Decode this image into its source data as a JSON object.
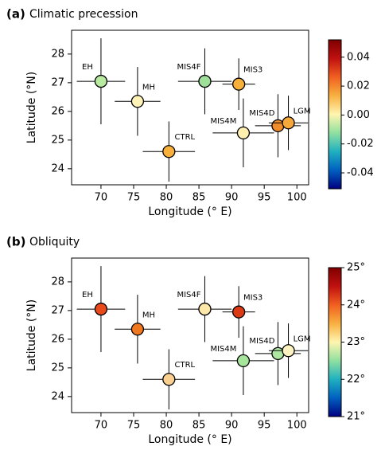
{
  "chart_data": [
    {
      "type": "scatter",
      "panel_label": "(a)",
      "title": "Climatic precession",
      "x_label": "Longitude (° E)",
      "y_label": "Latitude (°N)",
      "xlim": [
        65.5,
        101.8
      ],
      "xticks": [
        70,
        75,
        80,
        85,
        90,
        95,
        100
      ],
      "ylim": [
        23.44,
        28.83
      ],
      "yticks": [
        24,
        25,
        26,
        27,
        28
      ],
      "labels": [
        "EH",
        "MH",
        "CTRL",
        "MIS4F",
        "MIS3",
        "MIS4M",
        "MIS4D",
        "LGM"
      ],
      "x": [
        70,
        75.6,
        80.4,
        85.9,
        91.1,
        91.8,
        97.1,
        98.7
      ],
      "y": [
        27.05,
        26.35,
        24.6,
        27.05,
        26.95,
        25.25,
        25.5,
        25.6
      ],
      "xerr": [
        3.7,
        3.5,
        4,
        4.1,
        2.5,
        4.7,
        3.5,
        3
      ],
      "yerr": [
        1.5,
        1.2,
        1.05,
        1.15,
        0.9,
        1.2,
        1.1,
        0.95
      ],
      "colors": [
        "#b8eba0",
        "#fff3b8",
        "#f8b03a",
        "#9ee09a",
        "#f7b13a",
        "#fff0b0",
        "#f08c2a",
        "#f6a93a"
      ],
      "colorbar": {
        "lim": [
          -0.051,
          0.052
        ],
        "ticks": [
          -0.04,
          -0.02,
          {
            "value": 0,
            "label": "0.00"
          },
          0.02,
          0.04
        ],
        "colors": [
          "#00007f",
          "#0060c0",
          "#20b0c0",
          "#90e0a0",
          "#fff5b0",
          "#f8b040",
          "#f06020",
          "#c01010",
          "#7f0000"
        ]
      }
    },
    {
      "type": "scatter",
      "panel_label": "(b)",
      "title": "Obliquity",
      "x_label": "Longitude (° E)",
      "y_label": "Latitude (°N)",
      "xlim": [
        65.5,
        101.8
      ],
      "xticks": [
        70,
        75,
        80,
        85,
        90,
        95,
        100
      ],
      "ylim": [
        23.44,
        28.83
      ],
      "yticks": [
        24,
        25,
        26,
        27,
        28
      ],
      "labels": [
        "EH",
        "MH",
        "CTRL",
        "MIS4F",
        "MIS3",
        "MIS4M",
        "MIS4D",
        "LGM"
      ],
      "x": [
        70,
        75.6,
        80.4,
        85.9,
        91.1,
        91.8,
        97.1,
        98.7
      ],
      "y": [
        27.05,
        26.35,
        24.6,
        27.05,
        26.95,
        25.25,
        25.5,
        25.6
      ],
      "xerr": [
        3.7,
        3.5,
        4,
        4.1,
        2.5,
        4.7,
        3.5,
        3
      ],
      "yerr": [
        1.5,
        1.2,
        1.05,
        1.15,
        0.9,
        1.2,
        1.1,
        0.95
      ],
      "colors": [
        "#e84a1c",
        "#f0781e",
        "#fad090",
        "#fde7a9",
        "#dc3a14",
        "#a6e59b",
        "#aee8a0",
        "#fdf3c0"
      ],
      "colorbar": {
        "lim": [
          21,
          25
        ],
        "ticks": [
          {
            "value": 21,
            "label": "21°"
          },
          {
            "value": 22,
            "label": "22°"
          },
          {
            "value": 23,
            "label": "23°"
          },
          {
            "value": 24,
            "label": "24°"
          },
          {
            "value": 25,
            "label": "25°"
          }
        ],
        "colors": [
          "#00007f",
          "#0060c0",
          "#20b0c0",
          "#90e0a0",
          "#fff5b0",
          "#f8b040",
          "#f06020",
          "#c01010",
          "#7f0000"
        ]
      }
    }
  ]
}
